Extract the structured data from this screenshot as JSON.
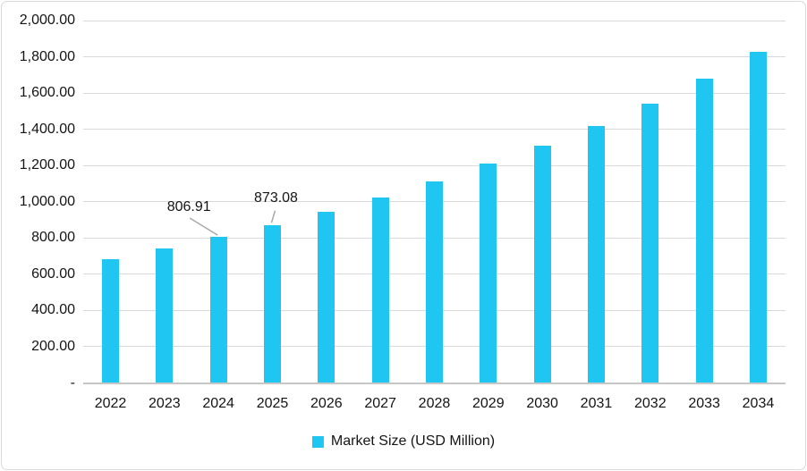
{
  "chart_data": {
    "type": "bar",
    "title": "",
    "categories": [
      "2022",
      "2023",
      "2024",
      "2025",
      "2026",
      "2027",
      "2028",
      "2029",
      "2030",
      "2031",
      "2032",
      "2033",
      "2034"
    ],
    "series": [
      {
        "name": "Market Size (USD Million)",
        "values": [
          684,
          744,
          806.91,
          873.08,
          945,
          1025,
          1111,
          1210,
          1308,
          1418,
          1542,
          1682,
          1830
        ]
      }
    ],
    "data_labels": [
      {
        "category": "2024",
        "text": "806.91"
      },
      {
        "category": "2025",
        "text": "873.08"
      }
    ],
    "y_axis": {
      "min": 0,
      "max": 2000,
      "step": 200,
      "tick_labels": [
        "2,000.00",
        "1,800.00",
        "1,600.00",
        "1,400.00",
        "1,200.00",
        "1,000.00",
        "800.00",
        "600.00",
        "400.00",
        "200.00",
        "-"
      ]
    },
    "x_axis": {
      "tick_labels": [
        "2022",
        "2023",
        "2024",
        "2025",
        "2026",
        "2027",
        "2028",
        "2029",
        "2030",
        "2031",
        "2032",
        "2033",
        "2034"
      ]
    },
    "legend": {
      "position": "bottom",
      "items": [
        {
          "label": "Market Size (USD Million)",
          "color": "#1FC6F2"
        }
      ]
    },
    "grid": true,
    "ylim": [
      0,
      2000
    ]
  },
  "colors": {
    "bar": "#1FC6F2",
    "gridline": "#D9D9D9",
    "axis_line": "#C6C6C6",
    "text": "#141414",
    "leader_line": "#A6A6A6",
    "border": "#D9D9D9",
    "background": "#FFFFFF"
  }
}
